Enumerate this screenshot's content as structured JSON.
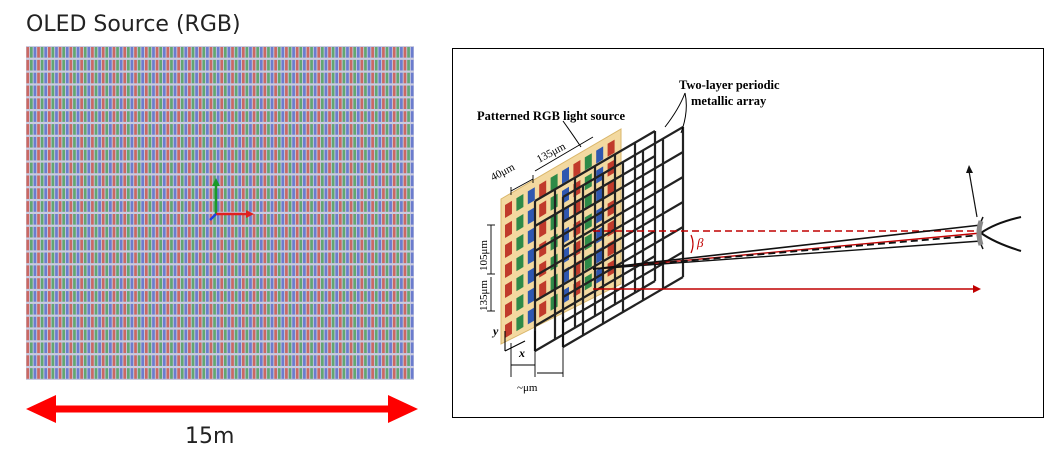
{
  "left_panel": {
    "title": "OLED Source (RGB)",
    "length_label": "15m",
    "colors": {
      "red": "#c9473a",
      "green": "#3f9a4c",
      "blue": "#4b61c8",
      "arrow": "#ff0000"
    }
  },
  "diagram": {
    "source_label": "Patterned RGB light source",
    "array_label_line1": "Two-layer periodic",
    "array_label_line2": "metallic array",
    "dim_40": "40μm",
    "dim_135_top": "135μm",
    "dim_105": "105μm",
    "dim_135_side": "135μm",
    "axis_y": "y",
    "axis_x": "x",
    "dim_gap": "~μm",
    "angle_label": "β",
    "colors": {
      "red": "#c03a2b",
      "green": "#2e8a48",
      "blue": "#2f57b0",
      "backplate": "#f3d9a0",
      "beam": "#c00000"
    }
  }
}
